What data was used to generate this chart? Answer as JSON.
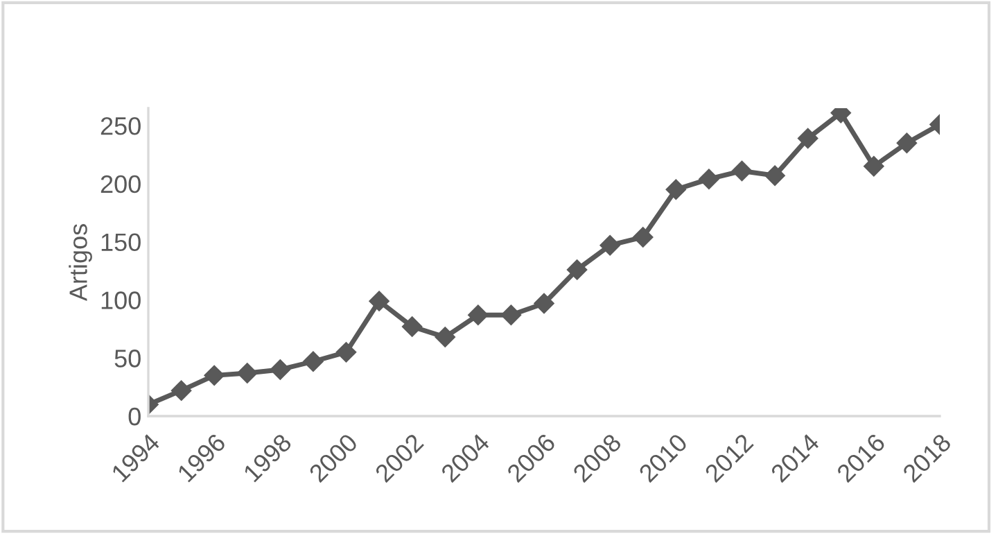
{
  "chart_data": {
    "type": "line",
    "ylabel": "Artigos",
    "x": [
      1994,
      1995,
      1996,
      1997,
      1998,
      1999,
      2000,
      2001,
      2002,
      2003,
      2004,
      2005,
      2006,
      2007,
      2008,
      2009,
      2010,
      2011,
      2012,
      2013,
      2014,
      2015,
      2016,
      2017,
      2018
    ],
    "series": [
      {
        "color": "#595959",
        "values": [
          10,
          22,
          35,
          37,
          40,
          47,
          55,
          99,
          77,
          68,
          87,
          87,
          97,
          126,
          147,
          154,
          195,
          204,
          211,
          207,
          239,
          261,
          215,
          235,
          251
        ]
      }
    ],
    "xlim": [
      1994,
      2018
    ],
    "xticks": [
      1994,
      1996,
      1998,
      2000,
      2002,
      2004,
      2006,
      2008,
      2010,
      2012,
      2014,
      2016,
      2018
    ],
    "ylim": [
      0,
      265
    ],
    "yticks": [
      0,
      50,
      100,
      150,
      200,
      250
    ],
    "grid": false,
    "marker": "diamond",
    "line_style": "solid"
  }
}
